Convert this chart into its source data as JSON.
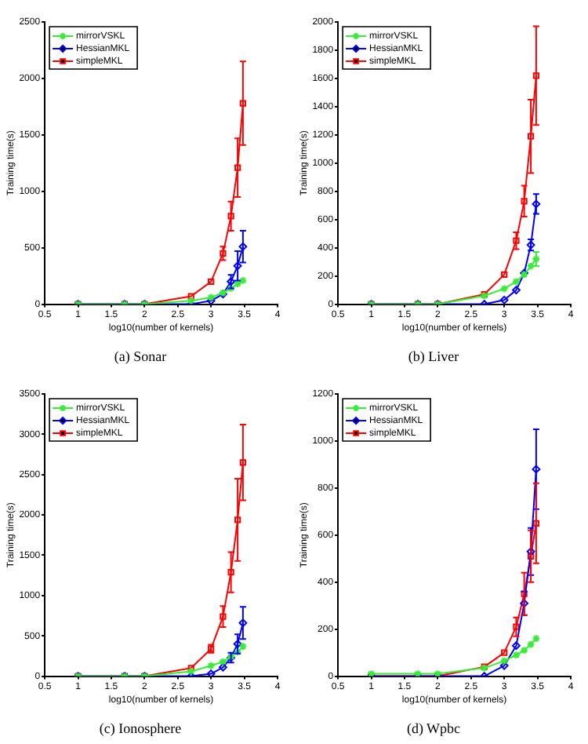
{
  "chart_data": [
    {
      "type": "line",
      "title": "(a) Sonar",
      "xlabel": "log10(number of kernels)",
      "ylabel": "Training time(s)",
      "x": [
        1,
        1.7,
        2,
        2.7,
        3,
        3.18,
        3.3,
        3.4,
        3.48
      ],
      "xlim": [
        0.5,
        4
      ],
      "xticks": [
        0.5,
        1,
        1.5,
        2,
        2.5,
        3,
        3.5,
        4
      ],
      "ylim": [
        0,
        2500
      ],
      "yticks": [
        0,
        500,
        1000,
        1500,
        2000,
        2500
      ],
      "grid": false,
      "legend": "top left",
      "series": [
        {
          "name": "mirrorVSKL",
          "color": "#33ee33",
          "marker": "cross",
          "values": [
            0,
            0,
            0,
            30,
            60,
            100,
            140,
            180,
            210
          ]
        },
        {
          "name": "HessianMKL",
          "color": "#0000ff",
          "marker": "diamond",
          "values": [
            0,
            0,
            0,
            0,
            30,
            90,
            200,
            340,
            510
          ],
          "errors": [
            null,
            null,
            null,
            null,
            null,
            null,
            60,
            130,
            140
          ]
        },
        {
          "name": "simpleMKL",
          "color": "#ff0000",
          "marker": "square",
          "values": [
            0,
            0,
            0,
            70,
            200,
            450,
            780,
            1210,
            1780
          ],
          "errors": [
            null,
            null,
            null,
            null,
            null,
            60,
            130,
            260,
            370
          ]
        }
      ]
    },
    {
      "type": "line",
      "title": "(b) Liver",
      "xlabel": "log10(number of kernels)",
      "ylabel": "Training time(s)",
      "x": [
        1,
        1.7,
        2,
        2.7,
        3,
        3.18,
        3.3,
        3.4,
        3.48
      ],
      "xlim": [
        0.5,
        4
      ],
      "xticks": [
        0.5,
        1,
        1.5,
        2,
        2.5,
        3,
        3.5,
        4
      ],
      "ylim": [
        0,
        2000
      ],
      "yticks": [
        0,
        200,
        400,
        600,
        800,
        1000,
        1200,
        1400,
        1600,
        1800,
        2000
      ],
      "grid": false,
      "legend": "top left",
      "series": [
        {
          "name": "mirrorVSKL",
          "color": "#33ee33",
          "marker": "cross",
          "values": [
            0,
            0,
            0,
            60,
            110,
            160,
            210,
            270,
            320
          ],
          "errors": [
            null,
            null,
            null,
            null,
            null,
            null,
            null,
            null,
            50
          ]
        },
        {
          "name": "HessianMKL",
          "color": "#0000ff",
          "marker": "diamond",
          "values": [
            0,
            0,
            0,
            0,
            30,
            100,
            220,
            420,
            710
          ],
          "errors": [
            null,
            null,
            null,
            null,
            null,
            null,
            null,
            40,
            70
          ]
        },
        {
          "name": "simpleMKL",
          "color": "#ff0000",
          "marker": "square",
          "values": [
            0,
            0,
            0,
            70,
            210,
            450,
            730,
            1190,
            1620
          ],
          "errors": [
            null,
            null,
            null,
            null,
            null,
            60,
            110,
            260,
            350
          ]
        }
      ]
    },
    {
      "type": "line",
      "title": "(c) Ionosphere",
      "xlabel": "log10(number of kernels)",
      "ylabel": "Training time(s)",
      "x": [
        1,
        1.7,
        2,
        2.7,
        3,
        3.18,
        3.3,
        3.4,
        3.48
      ],
      "xlim": [
        0.5,
        4
      ],
      "xticks": [
        0.5,
        1,
        1.5,
        2,
        2.5,
        3,
        3.5,
        4
      ],
      "ylim": [
        0,
        3500
      ],
      "yticks": [
        0,
        500,
        1000,
        1500,
        2000,
        2500,
        3000,
        3500
      ],
      "grid": false,
      "legend": "top left",
      "series": [
        {
          "name": "mirrorVSKL",
          "color": "#33ee33",
          "marker": "cross",
          "values": [
            0,
            0,
            0,
            60,
            130,
            180,
            240,
            300,
            370
          ]
        },
        {
          "name": "HessianMKL",
          "color": "#0000ff",
          "marker": "diamond",
          "values": [
            0,
            0,
            0,
            0,
            30,
            110,
            230,
            400,
            660
          ],
          "errors": [
            null,
            null,
            null,
            null,
            null,
            null,
            60,
            120,
            200
          ]
        },
        {
          "name": "simpleMKL",
          "color": "#ff0000",
          "marker": "square",
          "values": [
            0,
            0,
            0,
            100,
            340,
            740,
            1290,
            1940,
            2650
          ],
          "errors": [
            null,
            null,
            null,
            null,
            50,
            130,
            250,
            510,
            470
          ]
        }
      ]
    },
    {
      "type": "line",
      "title": "(d) Wpbc",
      "xlabel": "log10(number of kernels)",
      "ylabel": "Training time(s)",
      "x": [
        1,
        1.7,
        2,
        2.7,
        3,
        3.18,
        3.3,
        3.4,
        3.48
      ],
      "xlim": [
        0.5,
        4
      ],
      "xticks": [
        0.5,
        1,
        1.5,
        2,
        2.5,
        3,
        3.5,
        4
      ],
      "ylim": [
        0,
        1200
      ],
      "yticks": [
        0,
        200,
        400,
        600,
        800,
        1000,
        1200
      ],
      "grid": false,
      "legend": "top left",
      "series": [
        {
          "name": "mirrorVSKL",
          "color": "#33ee33",
          "marker": "cross",
          "values": [
            10,
            10,
            10,
            35,
            65,
            90,
            110,
            135,
            160
          ]
        },
        {
          "name": "HessianMKL",
          "color": "#0000ff",
          "marker": "diamond",
          "values": [
            0,
            0,
            0,
            0,
            45,
            130,
            310,
            530,
            880
          ],
          "errors": [
            null,
            null,
            null,
            null,
            null,
            null,
            50,
            100,
            170
          ]
        },
        {
          "name": "simpleMKL",
          "color": "#ff0000",
          "marker": "square",
          "values": [
            0,
            0,
            0,
            40,
            100,
            210,
            350,
            510,
            650
          ],
          "errors": [
            null,
            null,
            null,
            null,
            null,
            40,
            90,
            110,
            170
          ]
        }
      ]
    }
  ]
}
